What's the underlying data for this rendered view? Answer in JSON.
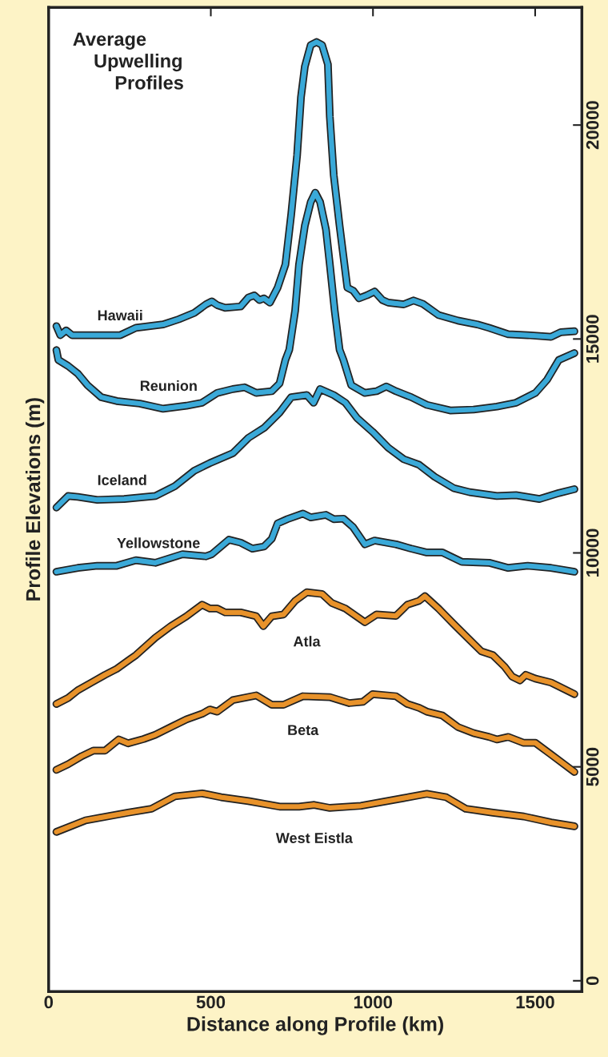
{
  "chart_data": {
    "type": "line",
    "title": "Average Upwelling Profiles",
    "xlabel": "Distance along Profile (km)",
    "ylabel": "Profile Elevations (m)",
    "xlim": [
      0,
      1644
    ],
    "ylim": [
      -250,
      22750
    ],
    "xticks": [
      0,
      500,
      1000,
      1500
    ],
    "yticks": [
      0,
      5000,
      10000,
      15000,
      20000
    ],
    "grid": false,
    "legend": false,
    "marker": "none",
    "line_style": "solid",
    "series": [
      {
        "name": "Hawaii",
        "color": "#3aa9d8",
        "x": [
          24,
          36,
          54,
          72,
          150,
          221,
          269,
          353,
          401,
          449,
          485,
          503,
          520,
          544,
          592,
          616,
          634,
          650,
          664,
          682,
          706,
          730,
          748,
          766,
          778,
          790,
          808,
          826,
          843,
          861,
          867,
          879,
          897,
          921,
          939,
          957,
          981,
          1005,
          1029,
          1047,
          1095,
          1125,
          1154,
          1202,
          1262,
          1322,
          1358,
          1417,
          1477,
          1549,
          1579,
          1621
        ],
        "values": [
          15300,
          15090,
          15200,
          15090,
          15090,
          15090,
          15260,
          15340,
          15460,
          15610,
          15810,
          15880,
          15790,
          15730,
          15760,
          15970,
          16020,
          15910,
          15950,
          15850,
          16200,
          16740,
          17920,
          19290,
          20650,
          21370,
          21870,
          21940,
          21870,
          21420,
          20190,
          18830,
          17650,
          16200,
          16130,
          15950,
          16020,
          16110,
          15910,
          15850,
          15810,
          15900,
          15820,
          15560,
          15430,
          15340,
          15260,
          15110,
          15090,
          15050,
          15160,
          15180
        ]
      },
      {
        "name": "Reunion",
        "color": "#3aa9d8",
        "x": [
          24,
          30,
          60,
          90,
          120,
          162,
          210,
          281,
          353,
          425,
          473,
          520,
          568,
          604,
          640,
          688,
          712,
          730,
          742,
          760,
          772,
          790,
          808,
          822,
          837,
          855,
          867,
          882,
          897,
          909,
          933,
          975,
          1011,
          1041,
          1071,
          1118,
          1166,
          1238,
          1310,
          1382,
          1441,
          1501,
          1537,
          1573,
          1621
        ],
        "values": [
          14740,
          14510,
          14370,
          14190,
          13920,
          13640,
          13550,
          13490,
          13370,
          13440,
          13510,
          13740,
          13830,
          13870,
          13740,
          13780,
          13960,
          14510,
          14750,
          15660,
          16740,
          17650,
          18200,
          18420,
          18200,
          17560,
          16740,
          15660,
          14750,
          14510,
          13920,
          13740,
          13780,
          13890,
          13780,
          13640,
          13460,
          13330,
          13350,
          13420,
          13510,
          13740,
          14050,
          14510,
          14670
        ]
      },
      {
        "name": "Iceland",
        "color": "#3aa9d8",
        "x": [
          24,
          60,
          90,
          150,
          233,
          329,
          389,
          449,
          497,
          568,
          616,
          664,
          712,
          748,
          796,
          817,
          837,
          879,
          915,
          951,
          999,
          1047,
          1095,
          1142,
          1190,
          1250,
          1298,
          1382,
          1441,
          1513,
          1573,
          1621
        ],
        "values": [
          11060,
          11330,
          11310,
          11240,
          11260,
          11330,
          11560,
          11920,
          12100,
          12330,
          12690,
          12920,
          13280,
          13640,
          13690,
          13510,
          13830,
          13690,
          13510,
          13150,
          12830,
          12460,
          12190,
          12060,
          11780,
          11510,
          11420,
          11330,
          11350,
          11260,
          11400,
          11490
        ]
      },
      {
        "name": "Yellowstone",
        "color": "#3aa9d8",
        "x": [
          24,
          90,
          150,
          210,
          269,
          329,
          413,
          485,
          503,
          556,
          592,
          628,
          664,
          688,
          706,
          736,
          784,
          808,
          855,
          879,
          909,
          939,
          975,
          1005,
          1071,
          1118,
          1166,
          1214,
          1274,
          1358,
          1417,
          1477,
          1549,
          1621
        ],
        "values": [
          9560,
          9650,
          9700,
          9700,
          9830,
          9770,
          9970,
          9920,
          9970,
          10310,
          10240,
          10100,
          10150,
          10330,
          10690,
          10790,
          10920,
          10830,
          10890,
          10790,
          10800,
          10600,
          10200,
          10290,
          10200,
          10100,
          10010,
          10010,
          9790,
          9770,
          9650,
          9700,
          9650,
          9560
        ]
      },
      {
        "name": "Atla",
        "color": "#e8922a",
        "x": [
          24,
          60,
          90,
          132,
          174,
          210,
          252,
          269,
          329,
          377,
          425,
          473,
          497,
          520,
          544,
          592,
          640,
          662,
          688,
          724,
          760,
          796,
          843,
          873,
          915,
          975,
          1011,
          1071,
          1106,
          1142,
          1160,
          1202,
          1250,
          1298,
          1334,
          1370,
          1406,
          1429,
          1453,
          1471,
          1501,
          1549,
          1621
        ],
        "values": [
          6470,
          6610,
          6790,
          6970,
          7150,
          7290,
          7520,
          7610,
          8020,
          8290,
          8520,
          8790,
          8700,
          8700,
          8610,
          8610,
          8520,
          8290,
          8520,
          8560,
          8880,
          9080,
          9040,
          8830,
          8700,
          8380,
          8560,
          8530,
          8790,
          8880,
          8990,
          8700,
          8330,
          7970,
          7700,
          7610,
          7340,
          7110,
          7020,
          7150,
          7060,
          6970,
          6700
        ]
      },
      {
        "name": "Beta",
        "color": "#e8922a",
        "x": [
          24,
          60,
          102,
          138,
          174,
          216,
          245,
          293,
          329,
          377,
          425,
          473,
          497,
          520,
          568,
          640,
          688,
          724,
          784,
          867,
          927,
          969,
          999,
          1071,
          1106,
          1142,
          1166,
          1214,
          1262,
          1310,
          1358,
          1382,
          1417,
          1465,
          1501,
          1549,
          1621
        ],
        "values": [
          4930,
          5060,
          5250,
          5380,
          5380,
          5640,
          5550,
          5650,
          5750,
          5930,
          6110,
          6240,
          6340,
          6290,
          6560,
          6670,
          6450,
          6450,
          6650,
          6630,
          6490,
          6520,
          6700,
          6650,
          6470,
          6380,
          6290,
          6200,
          5930,
          5790,
          5700,
          5640,
          5700,
          5560,
          5560,
          5290,
          4880
        ]
      },
      {
        "name": "West Eistla",
        "color": "#e8922a",
        "x": [
          24,
          114,
          245,
          317,
          389,
          473,
          532,
          616,
          712,
          772,
          819,
          867,
          963,
          1095,
          1166,
          1226,
          1286,
          1370,
          1465,
          1549,
          1621
        ],
        "values": [
          3480,
          3750,
          3930,
          4020,
          4310,
          4380,
          4290,
          4200,
          4070,
          4070,
          4110,
          4040,
          4090,
          4270,
          4370,
          4290,
          4020,
          3930,
          3840,
          3700,
          3610
        ]
      }
    ]
  }
}
